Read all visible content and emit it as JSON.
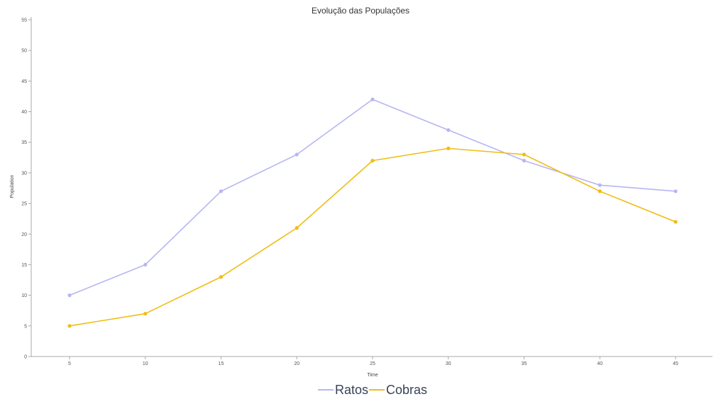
{
  "chart_data": {
    "type": "line",
    "title": "Evolução das Populações",
    "xlabel": "Time",
    "ylabel": "Population",
    "x": [
      5,
      10,
      15,
      20,
      25,
      30,
      35,
      40,
      45
    ],
    "xticks": [
      "5",
      "10",
      "15",
      "20",
      "25",
      "30",
      "35",
      "40",
      "45"
    ],
    "yticks": [
      "0",
      "5",
      "10",
      "15",
      "20",
      "25",
      "30",
      "35",
      "40",
      "45",
      "50",
      "55"
    ],
    "ylim": [
      0,
      55
    ],
    "grid": false,
    "legend_position": "bottom",
    "series": [
      {
        "name": "Ratos",
        "color": "#b7b6f2",
        "values": [
          10,
          15,
          27,
          33,
          42,
          37,
          32,
          28,
          27
        ]
      },
      {
        "name": "Cobras",
        "color": "#efbd14",
        "values": [
          5,
          7,
          13,
          21,
          32,
          34,
          33,
          27,
          22
        ]
      }
    ]
  }
}
